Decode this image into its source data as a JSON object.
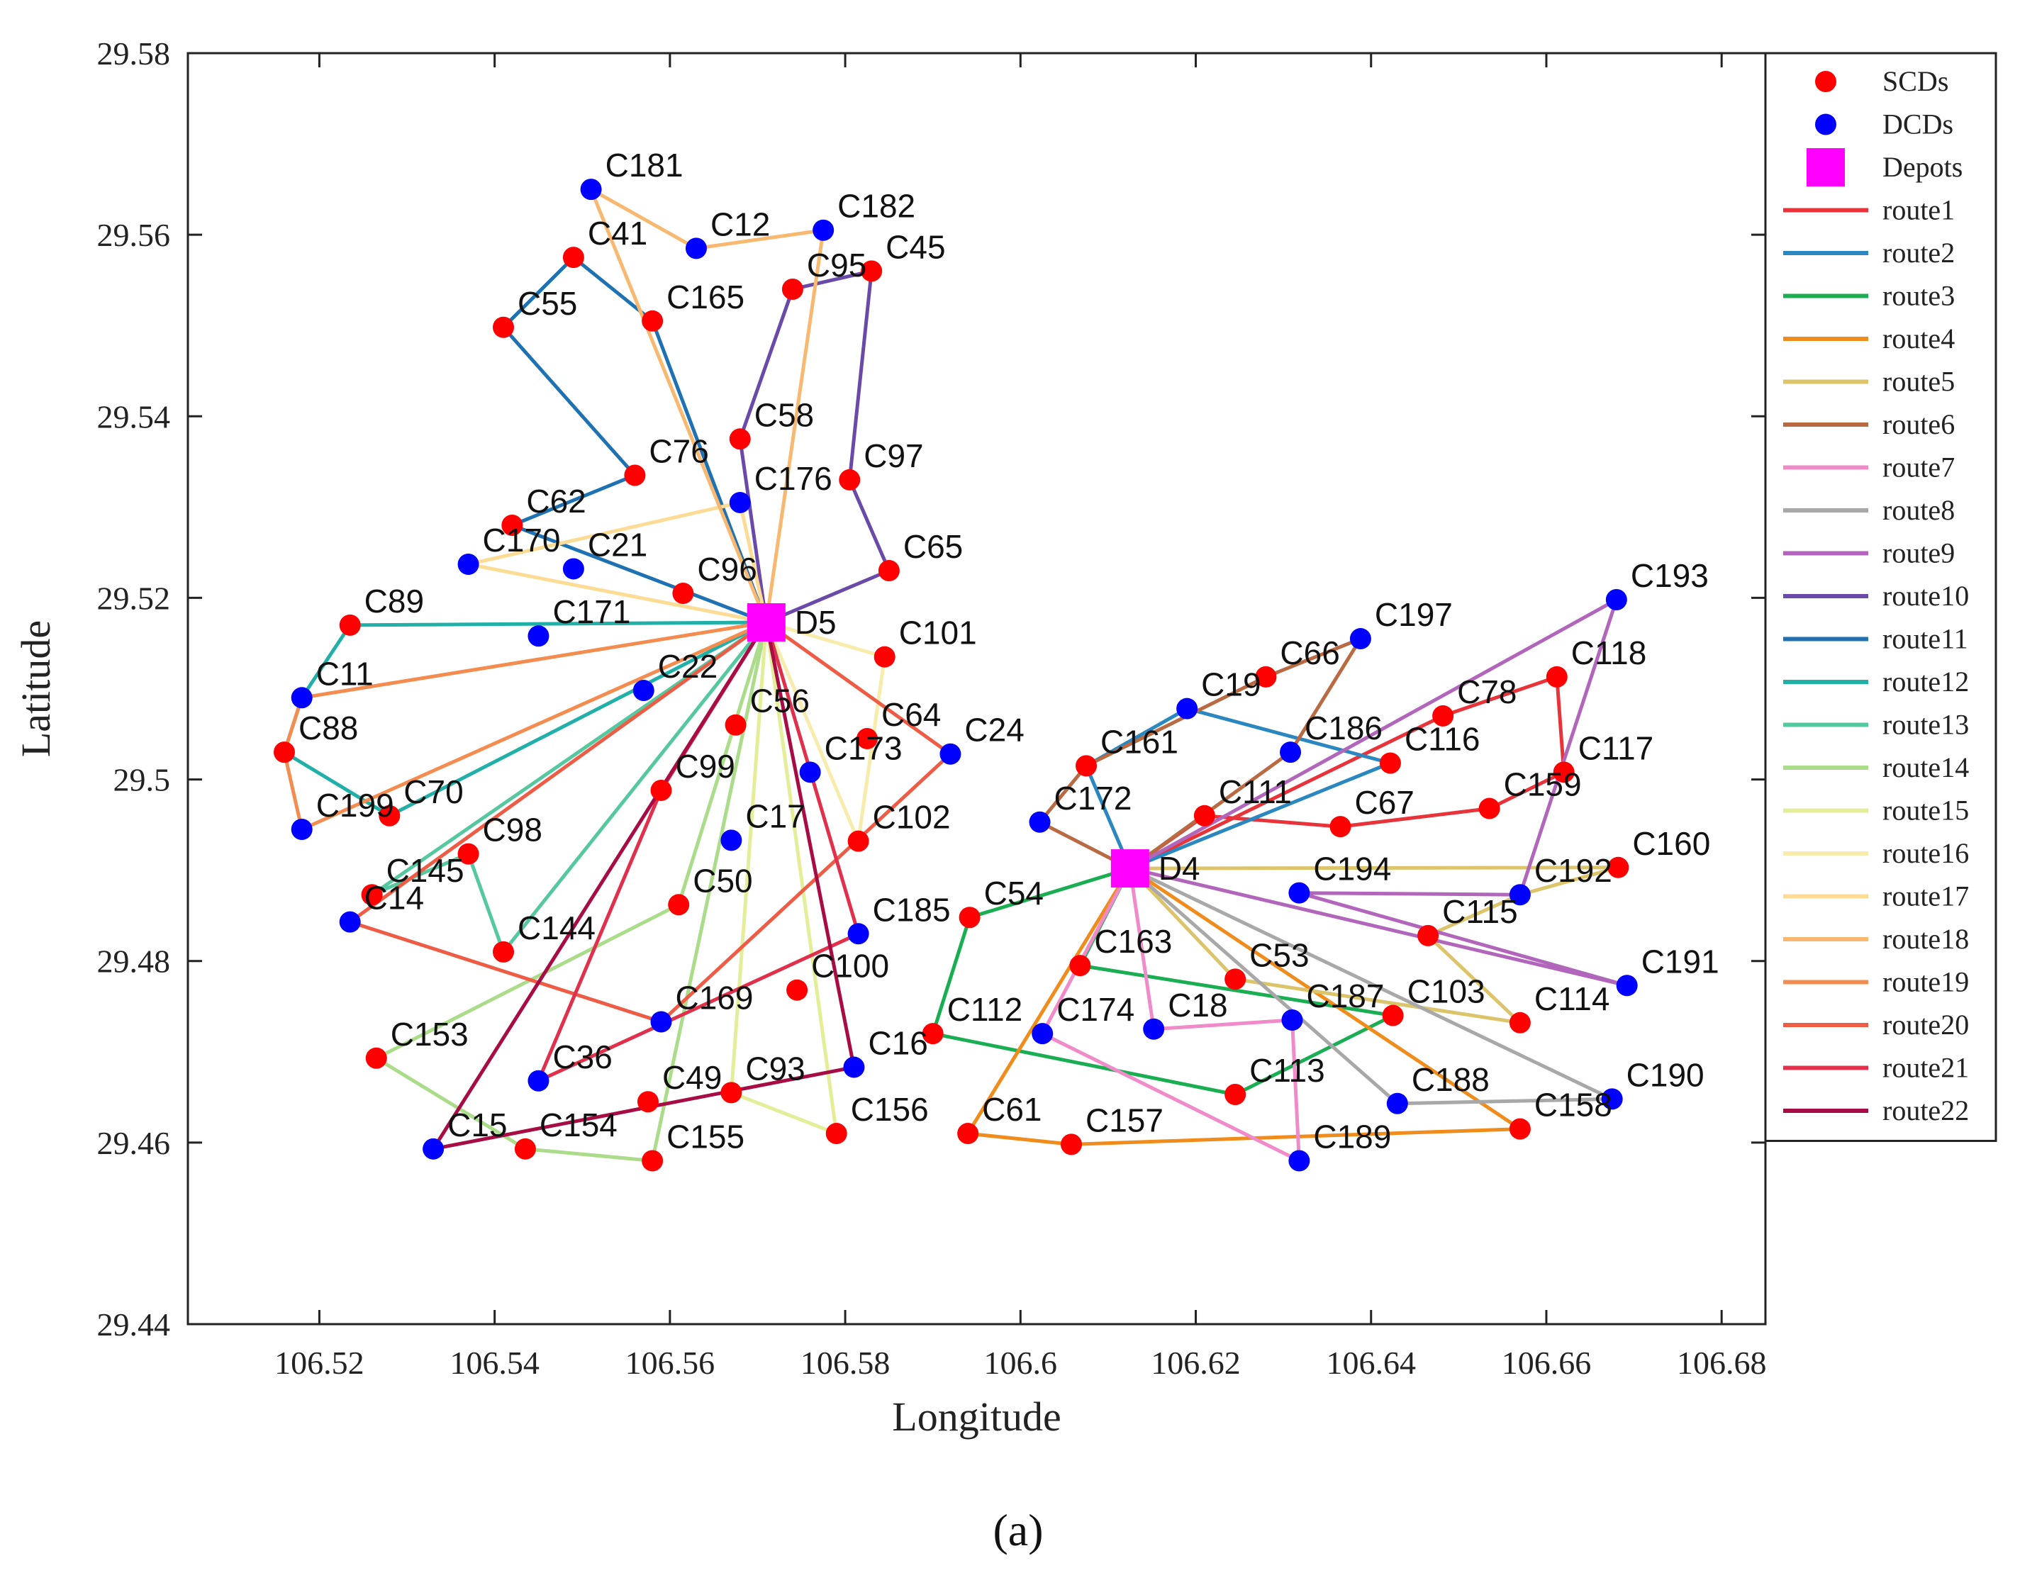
{
  "chart_data": {
    "type": "scatter",
    "xlabel": "Longitude",
    "ylabel": "Latitude",
    "xlim": [
      106.505,
      106.685
    ],
    "ylim": [
      29.44,
      29.58
    ],
    "xticks": [
      106.52,
      106.54,
      106.56,
      106.58,
      106.6,
      106.62,
      106.64,
      106.66,
      106.68
    ],
    "xtick_labels": [
      "106.52",
      "106.54",
      "106.56",
      "106.58",
      "106.6",
      "106.62",
      "106.64",
      "106.66",
      "106.68"
    ],
    "yticks": [
      29.44,
      29.46,
      29.48,
      29.5,
      29.52,
      29.54,
      29.56,
      29.58
    ],
    "ytick_labels": [
      "29.44",
      "29.46",
      "29.48",
      "29.5",
      "29.52",
      "29.54",
      "29.56",
      "29.58"
    ],
    "grid": false,
    "legend_position": "right",
    "caption": "(a)",
    "legend": [
      {
        "label": "SCDs",
        "kind": "scd"
      },
      {
        "label": "DCDs",
        "kind": "dcd"
      },
      {
        "label": "Depots",
        "kind": "depot"
      },
      {
        "label": "route1",
        "kind": "line",
        "route": "route1"
      },
      {
        "label": "route2",
        "kind": "line",
        "route": "route2"
      },
      {
        "label": "route3",
        "kind": "line",
        "route": "route3"
      },
      {
        "label": "route4",
        "kind": "line",
        "route": "route4"
      },
      {
        "label": "route5",
        "kind": "line",
        "route": "route5"
      },
      {
        "label": "route6",
        "kind": "line",
        "route": "route6"
      },
      {
        "label": "route7",
        "kind": "line",
        "route": "route7"
      },
      {
        "label": "route8",
        "kind": "line",
        "route": "route8"
      },
      {
        "label": "route9",
        "kind": "line",
        "route": "route9"
      },
      {
        "label": "route10",
        "kind": "line",
        "route": "route10"
      },
      {
        "label": "route11",
        "kind": "line",
        "route": "route11"
      },
      {
        "label": "route12",
        "kind": "line",
        "route": "route12"
      },
      {
        "label": "route13",
        "kind": "line",
        "route": "route13"
      },
      {
        "label": "route14",
        "kind": "line",
        "route": "route14"
      },
      {
        "label": "route15",
        "kind": "line",
        "route": "route15"
      },
      {
        "label": "route16",
        "kind": "line",
        "route": "route16"
      },
      {
        "label": "route17",
        "kind": "line",
        "route": "route17"
      },
      {
        "label": "route18",
        "kind": "line",
        "route": "route18"
      },
      {
        "label": "route19",
        "kind": "line",
        "route": "route19"
      },
      {
        "label": "route20",
        "kind": "line",
        "route": "route20"
      },
      {
        "label": "route21",
        "kind": "line",
        "route": "route21"
      },
      {
        "label": "route22",
        "kind": "line",
        "route": "route22"
      }
    ],
    "colors": {
      "scd": "#ff0000",
      "dcd": "#0000ff",
      "depot": "#ff00ff",
      "route1": "#e8333a",
      "route2": "#2b87c0",
      "route3": "#1aae52",
      "route4": "#f08c1c",
      "route5": "#dcc46a",
      "route6": "#b96a42",
      "route7": "#f08ac8",
      "route8": "#a8a8a8",
      "route9": "#b266bb",
      "route10": "#6a4aa8",
      "route11": "#1e72b4",
      "route12": "#20b0a8",
      "route13": "#56c8a0",
      "route14": "#aadc8a",
      "route15": "#e4ee98",
      "route16": "#f8ecac",
      "route17": "#fcdc94",
      "route18": "#f8b870",
      "route19": "#f48c50",
      "route20": "#ee5c46",
      "route21": "#e0304c",
      "route22": "#a80c44"
    },
    "depots": [
      {
        "name": "D5",
        "x": 106.571,
        "y": 29.5173
      },
      {
        "name": "D4",
        "x": 106.6125,
        "y": 29.4902
      }
    ],
    "nodes": [
      {
        "name": "C181",
        "x": 106.551,
        "y": 29.565,
        "type": "DCD"
      },
      {
        "name": "C12",
        "x": 106.563,
        "y": 29.5585,
        "type": "DCD"
      },
      {
        "name": "C182",
        "x": 106.5775,
        "y": 29.5605,
        "type": "DCD"
      },
      {
        "name": "C41",
        "x": 106.549,
        "y": 29.5575,
        "type": "SCD"
      },
      {
        "name": "C45",
        "x": 106.583,
        "y": 29.556,
        "type": "SCD"
      },
      {
        "name": "C95",
        "x": 106.574,
        "y": 29.554,
        "type": "SCD"
      },
      {
        "name": "C165",
        "x": 106.558,
        "y": 29.5505,
        "type": "SCD"
      },
      {
        "name": "C55",
        "x": 106.541,
        "y": 29.5498,
        "type": "SCD"
      },
      {
        "name": "C58",
        "x": 106.568,
        "y": 29.5375,
        "type": "SCD"
      },
      {
        "name": "C76",
        "x": 106.556,
        "y": 29.5335,
        "type": "SCD"
      },
      {
        "name": "C97",
        "x": 106.5805,
        "y": 29.533,
        "type": "SCD"
      },
      {
        "name": "C176",
        "x": 106.568,
        "y": 29.5305,
        "type": "DCD"
      },
      {
        "name": "C62",
        "x": 106.542,
        "y": 29.528,
        "type": "SCD"
      },
      {
        "name": "C170",
        "x": 106.537,
        "y": 29.5237,
        "type": "DCD"
      },
      {
        "name": "C21",
        "x": 106.549,
        "y": 29.5232,
        "type": "DCD"
      },
      {
        "name": "C65",
        "x": 106.585,
        "y": 29.523,
        "type": "SCD"
      },
      {
        "name": "C96",
        "x": 106.5615,
        "y": 29.5205,
        "type": "SCD"
      },
      {
        "name": "C89",
        "x": 106.5235,
        "y": 29.517,
        "type": "SCD"
      },
      {
        "name": "C171",
        "x": 106.545,
        "y": 29.5158,
        "type": "DCD"
      },
      {
        "name": "C101",
        "x": 106.5845,
        "y": 29.5135,
        "type": "SCD"
      },
      {
        "name": "C22",
        "x": 106.557,
        "y": 29.5098,
        "type": "DCD"
      },
      {
        "name": "C11",
        "x": 106.518,
        "y": 29.509,
        "type": "DCD"
      },
      {
        "name": "C56",
        "x": 106.5675,
        "y": 29.506,
        "type": "SCD"
      },
      {
        "name": "C64",
        "x": 106.5825,
        "y": 29.5045,
        "type": "SCD"
      },
      {
        "name": "C88",
        "x": 106.516,
        "y": 29.503,
        "type": "SCD"
      },
      {
        "name": "C24",
        "x": 106.592,
        "y": 29.5028,
        "type": "DCD"
      },
      {
        "name": "C173",
        "x": 106.576,
        "y": 29.5008,
        "type": "DCD"
      },
      {
        "name": "C99",
        "x": 106.559,
        "y": 29.4988,
        "type": "SCD"
      },
      {
        "name": "C70",
        "x": 106.528,
        "y": 29.496,
        "type": "SCD"
      },
      {
        "name": "C199",
        "x": 106.518,
        "y": 29.4945,
        "type": "DCD"
      },
      {
        "name": "C17",
        "x": 106.567,
        "y": 29.4933,
        "type": "DCD"
      },
      {
        "name": "C102",
        "x": 106.5815,
        "y": 29.4932,
        "type": "SCD"
      },
      {
        "name": "C98",
        "x": 106.537,
        "y": 29.4918,
        "type": "SCD"
      },
      {
        "name": "C145",
        "x": 106.526,
        "y": 29.4873,
        "type": "SCD"
      },
      {
        "name": "C50",
        "x": 106.561,
        "y": 29.4862,
        "type": "SCD"
      },
      {
        "name": "C14",
        "x": 106.5235,
        "y": 29.4843,
        "type": "DCD"
      },
      {
        "name": "C185",
        "x": 106.5815,
        "y": 29.483,
        "type": "DCD"
      },
      {
        "name": "C144",
        "x": 106.541,
        "y": 29.481,
        "type": "SCD"
      },
      {
        "name": "C100",
        "x": 106.5745,
        "y": 29.4768,
        "type": "SCD"
      },
      {
        "name": "C169",
        "x": 106.559,
        "y": 29.4733,
        "type": "DCD"
      },
      {
        "name": "C153",
        "x": 106.5265,
        "y": 29.4693,
        "type": "SCD"
      },
      {
        "name": "C16",
        "x": 106.581,
        "y": 29.4683,
        "type": "DCD"
      },
      {
        "name": "C36",
        "x": 106.545,
        "y": 29.4668,
        "type": "DCD"
      },
      {
        "name": "C93",
        "x": 106.567,
        "y": 29.4655,
        "type": "SCD"
      },
      {
        "name": "C49",
        "x": 106.5575,
        "y": 29.4645,
        "type": "SCD"
      },
      {
        "name": "C156",
        "x": 106.579,
        "y": 29.461,
        "type": "SCD"
      },
      {
        "name": "C15",
        "x": 106.533,
        "y": 29.4593,
        "type": "DCD"
      },
      {
        "name": "C154",
        "x": 106.5435,
        "y": 29.4593,
        "type": "SCD"
      },
      {
        "name": "C155",
        "x": 106.558,
        "y": 29.458,
        "type": "SCD"
      },
      {
        "name": "C197",
        "x": 106.6388,
        "y": 29.5155,
        "type": "DCD"
      },
      {
        "name": "C66",
        "x": 106.628,
        "y": 29.5113,
        "type": "SCD"
      },
      {
        "name": "C118",
        "x": 106.6612,
        "y": 29.5113,
        "type": "SCD"
      },
      {
        "name": "C19",
        "x": 106.619,
        "y": 29.5078,
        "type": "DCD"
      },
      {
        "name": "C78",
        "x": 106.6482,
        "y": 29.507,
        "type": "SCD"
      },
      {
        "name": "C186",
        "x": 106.6308,
        "y": 29.503,
        "type": "DCD"
      },
      {
        "name": "C161",
        "x": 106.6075,
        "y": 29.5015,
        "type": "SCD"
      },
      {
        "name": "C116",
        "x": 106.6422,
        "y": 29.5018,
        "type": "SCD"
      },
      {
        "name": "C117",
        "x": 106.662,
        "y": 29.5008,
        "type": "SCD"
      },
      {
        "name": "C159",
        "x": 106.6535,
        "y": 29.4968,
        "type": "SCD"
      },
      {
        "name": "C111",
        "x": 106.621,
        "y": 29.496,
        "type": "SCD"
      },
      {
        "name": "C67",
        "x": 106.6365,
        "y": 29.4948,
        "type": "SCD"
      },
      {
        "name": "C172",
        "x": 106.6022,
        "y": 29.4953,
        "type": "DCD"
      },
      {
        "name": "C193",
        "x": 106.668,
        "y": 29.5198,
        "type": "DCD"
      },
      {
        "name": "C160",
        "x": 106.6682,
        "y": 29.4903,
        "type": "SCD"
      },
      {
        "name": "C194",
        "x": 106.6318,
        "y": 29.4875,
        "type": "DCD"
      },
      {
        "name": "C192",
        "x": 106.657,
        "y": 29.4873,
        "type": "DCD"
      },
      {
        "name": "C54",
        "x": 106.5942,
        "y": 29.4848,
        "type": "SCD"
      },
      {
        "name": "C115",
        "x": 106.6465,
        "y": 29.4828,
        "type": "SCD"
      },
      {
        "name": "C163",
        "x": 106.6068,
        "y": 29.4795,
        "type": "SCD"
      },
      {
        "name": "C53",
        "x": 106.6245,
        "y": 29.478,
        "type": "SCD"
      },
      {
        "name": "C191",
        "x": 106.6692,
        "y": 29.4773,
        "type": "DCD"
      },
      {
        "name": "C103",
        "x": 106.6425,
        "y": 29.474,
        "type": "SCD"
      },
      {
        "name": "C187",
        "x": 106.631,
        "y": 29.4735,
        "type": "DCD"
      },
      {
        "name": "C114",
        "x": 106.657,
        "y": 29.4732,
        "type": "SCD"
      },
      {
        "name": "C18",
        "x": 106.6152,
        "y": 29.4725,
        "type": "DCD"
      },
      {
        "name": "C112",
        "x": 106.59,
        "y": 29.472,
        "type": "SCD"
      },
      {
        "name": "C174",
        "x": 106.6025,
        "y": 29.472,
        "type": "DCD"
      },
      {
        "name": "C113",
        "x": 106.6245,
        "y": 29.4653,
        "type": "SCD"
      },
      {
        "name": "C190",
        "x": 106.6675,
        "y": 29.4648,
        "type": "DCD"
      },
      {
        "name": "C188",
        "x": 106.643,
        "y": 29.4643,
        "type": "DCD"
      },
      {
        "name": "C158",
        "x": 106.657,
        "y": 29.4615,
        "type": "SCD"
      },
      {
        "name": "C61",
        "x": 106.594,
        "y": 29.461,
        "type": "SCD"
      },
      {
        "name": "C157",
        "x": 106.6058,
        "y": 29.4598,
        "type": "SCD"
      },
      {
        "name": "C189",
        "x": 106.6318,
        "y": 29.458,
        "type": "DCD"
      }
    ],
    "routes": [
      {
        "name": "route1",
        "stops": [
          "D4",
          "C111",
          "C67",
          "C159",
          "C117",
          "C118",
          "C78",
          "D4"
        ]
      },
      {
        "name": "route2",
        "stops": [
          "D4",
          "C116",
          "C19",
          "C161",
          "D4"
        ]
      },
      {
        "name": "route3",
        "stops": [
          "D4",
          "C54",
          "C112",
          "C113",
          "C103",
          "C163",
          "D4"
        ]
      },
      {
        "name": "route4",
        "stops": [
          "D4",
          "C61",
          "C157",
          "C158",
          "D4"
        ]
      },
      {
        "name": "route5",
        "stops": [
          "D4",
          "C160",
          "C192",
          "C115",
          "C114",
          "C53",
          "D4"
        ]
      },
      {
        "name": "route6",
        "stops": [
          "D4",
          "C172",
          "C161",
          "C66",
          "C197",
          "C186",
          "D4"
        ]
      },
      {
        "name": "route7",
        "stops": [
          "D4",
          "C18",
          "C187",
          "C189",
          "C174",
          "D4"
        ]
      },
      {
        "name": "route8",
        "stops": [
          "D4",
          "C190",
          "C188",
          "D4"
        ]
      },
      {
        "name": "route9",
        "stops": [
          "D4",
          "C193",
          "C192",
          "C194",
          "C191",
          "D4"
        ]
      },
      {
        "name": "route10",
        "stops": [
          "D5",
          "C58",
          "C95",
          "C45",
          "C97",
          "C65",
          "D5"
        ]
      },
      {
        "name": "route11",
        "stops": [
          "D5",
          "C165",
          "C41",
          "C55",
          "C76",
          "C62",
          "D5"
        ]
      },
      {
        "name": "route12",
        "stops": [
          "D5",
          "C89",
          "C11",
          "C88",
          "C70",
          "D5"
        ]
      },
      {
        "name": "route13",
        "stops": [
          "D5",
          "C145",
          "C98",
          "C144",
          "D5"
        ]
      },
      {
        "name": "route14",
        "stops": [
          "D5",
          "C155",
          "C154",
          "C153",
          "C50",
          "D5"
        ]
      },
      {
        "name": "route15",
        "stops": [
          "D5",
          "C156",
          "C93",
          "D5"
        ]
      },
      {
        "name": "route16",
        "stops": [
          "D5",
          "C101",
          "C102",
          "D5"
        ]
      },
      {
        "name": "route17",
        "stops": [
          "D5",
          "C170",
          "C176",
          "D5"
        ]
      },
      {
        "name": "route18",
        "stops": [
          "D5",
          "C181",
          "C12",
          "C182",
          "D5"
        ]
      },
      {
        "name": "route19",
        "stops": [
          "D5",
          "C199",
          "C88",
          "C11",
          "D5"
        ]
      },
      {
        "name": "route20",
        "stops": [
          "D5",
          "C14",
          "C169",
          "C24",
          "D5"
        ]
      },
      {
        "name": "route21",
        "stops": [
          "D5",
          "C185",
          "C36",
          "C99",
          "D5"
        ]
      },
      {
        "name": "route22",
        "stops": [
          "D5",
          "C15",
          "C16",
          "D5"
        ]
      }
    ]
  }
}
